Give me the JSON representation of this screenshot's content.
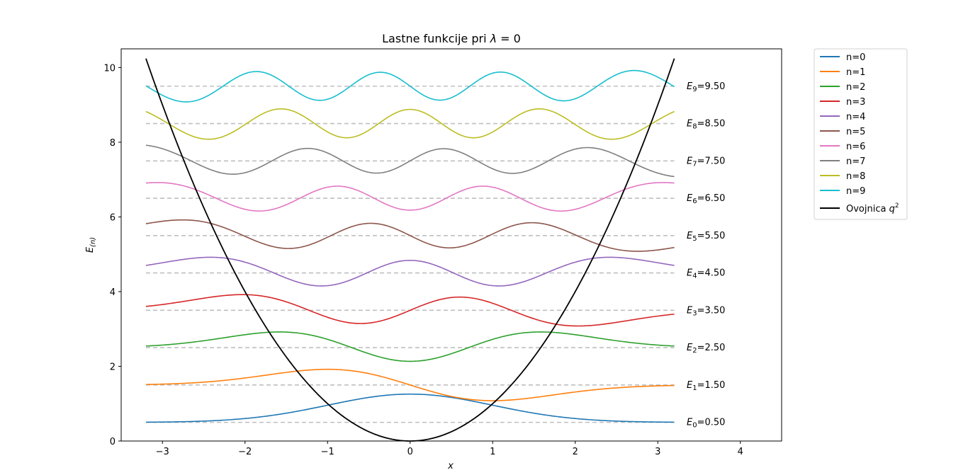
{
  "chart_data": {
    "type": "line",
    "title": "Lastne funkcije pri λ = 0",
    "title_parts": {
      "text": "Lastne funkcije pri ",
      "symbol": "λ",
      "rest": " = 0"
    },
    "xlabel": "x",
    "ylabel": "E(n)",
    "ylabel_parts": {
      "main": "E",
      "sub": "(n)"
    },
    "xlim": [
      -3.5,
      4.5
    ],
    "ylim": [
      0,
      10.5
    ],
    "x_range": [
      -3.2,
      3.2
    ],
    "x_ticks": [
      -3,
      -2,
      -1,
      0,
      1,
      2,
      3,
      4
    ],
    "x_tick_labels": [
      "−3",
      "−2",
      "−1",
      "0",
      "1",
      "2",
      "3",
      "4"
    ],
    "y_ticks": [
      0,
      2,
      4,
      6,
      8,
      10
    ],
    "y_tick_labels": [
      "0",
      "2",
      "4",
      "6",
      "8",
      "10"
    ],
    "grid": false,
    "legend_placement": "outside-upper-right",
    "energy_levels": [
      0.5,
      1.5,
      2.5,
      3.5,
      4.5,
      5.5,
      6.5,
      7.5,
      8.5,
      9.5
    ],
    "energy_labels": [
      {
        "sub": "0",
        "value": "=0.50"
      },
      {
        "sub": "1",
        "value": "=1.50"
      },
      {
        "sub": "2",
        "value": "=2.50"
      },
      {
        "sub": "3",
        "value": "=3.50"
      },
      {
        "sub": "4",
        "value": "=4.50"
      },
      {
        "sub": "5",
        "value": "=5.50"
      },
      {
        "sub": "6",
        "value": "=6.50"
      },
      {
        "sub": "7",
        "value": "=7.50"
      },
      {
        "sub": "8",
        "value": "=8.50"
      },
      {
        "sub": "9",
        "value": "=9.50"
      }
    ],
    "energy_label_prefix": "E",
    "series": [
      {
        "name": "n=0",
        "color": "#1f77b4",
        "offset": 0.5
      },
      {
        "name": "n=1",
        "color": "#ff7f0e",
        "offset": 1.5
      },
      {
        "name": "n=2",
        "color": "#2ca02c",
        "offset": 2.5
      },
      {
        "name": "n=3",
        "color": "#d62728",
        "offset": 3.5
      },
      {
        "name": "n=4",
        "color": "#9467bd",
        "offset": 4.5
      },
      {
        "name": "n=5",
        "color": "#8c564b",
        "offset": 5.5
      },
      {
        "name": "n=6",
        "color": "#e377c2",
        "offset": 6.5
      },
      {
        "name": "n=7",
        "color": "#7f7f7f",
        "offset": 7.5
      },
      {
        "name": "n=8",
        "color": "#bcbd22",
        "offset": 8.5
      },
      {
        "name": "n=9",
        "color": "#17becf",
        "offset": 9.5
      }
    ],
    "envelope": {
      "name_text": "Ovojnica ",
      "name_symbol": "q",
      "name_sup": "2",
      "color": "#000000"
    },
    "level_line_color": "#bfbfbf"
  }
}
